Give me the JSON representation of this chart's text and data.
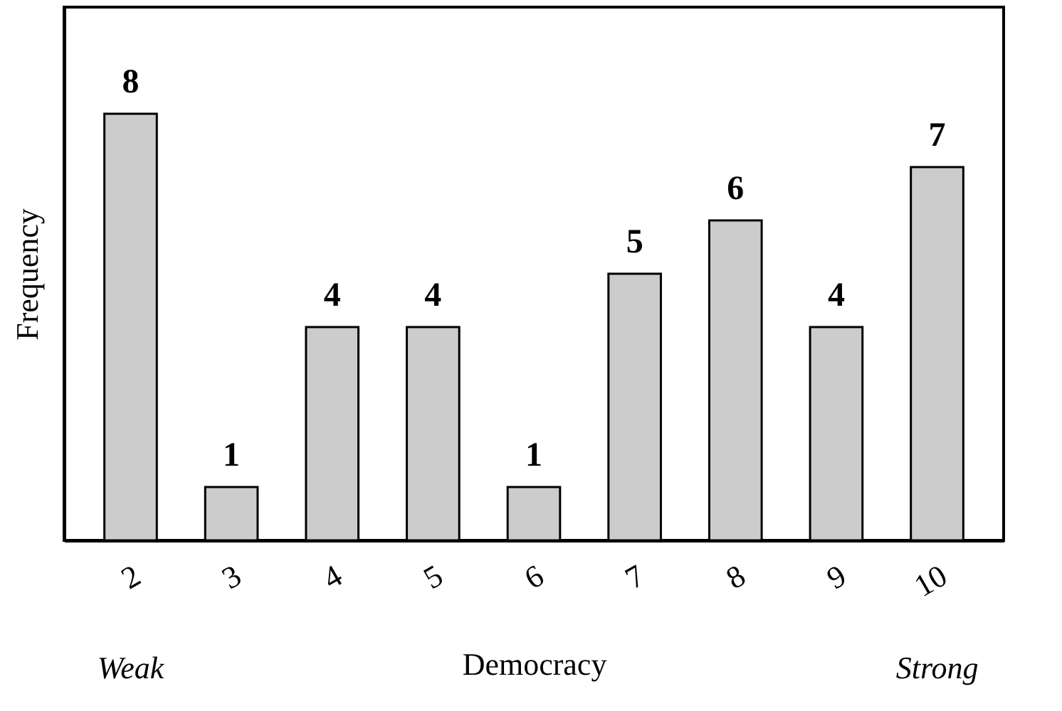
{
  "chart_data": {
    "type": "bar",
    "xlabel": "Democracy",
    "ylabel": "Frequency",
    "categories": [
      "2",
      "3",
      "4",
      "5",
      "6",
      "7",
      "8",
      "9",
      "10"
    ],
    "values": [
      8,
      1,
      4,
      4,
      1,
      5,
      6,
      4,
      7
    ],
    "color": "#cccccc",
    "data_labels": true,
    "grid": false,
    "annotations": [
      "Weak",
      "Strong"
    ]
  }
}
